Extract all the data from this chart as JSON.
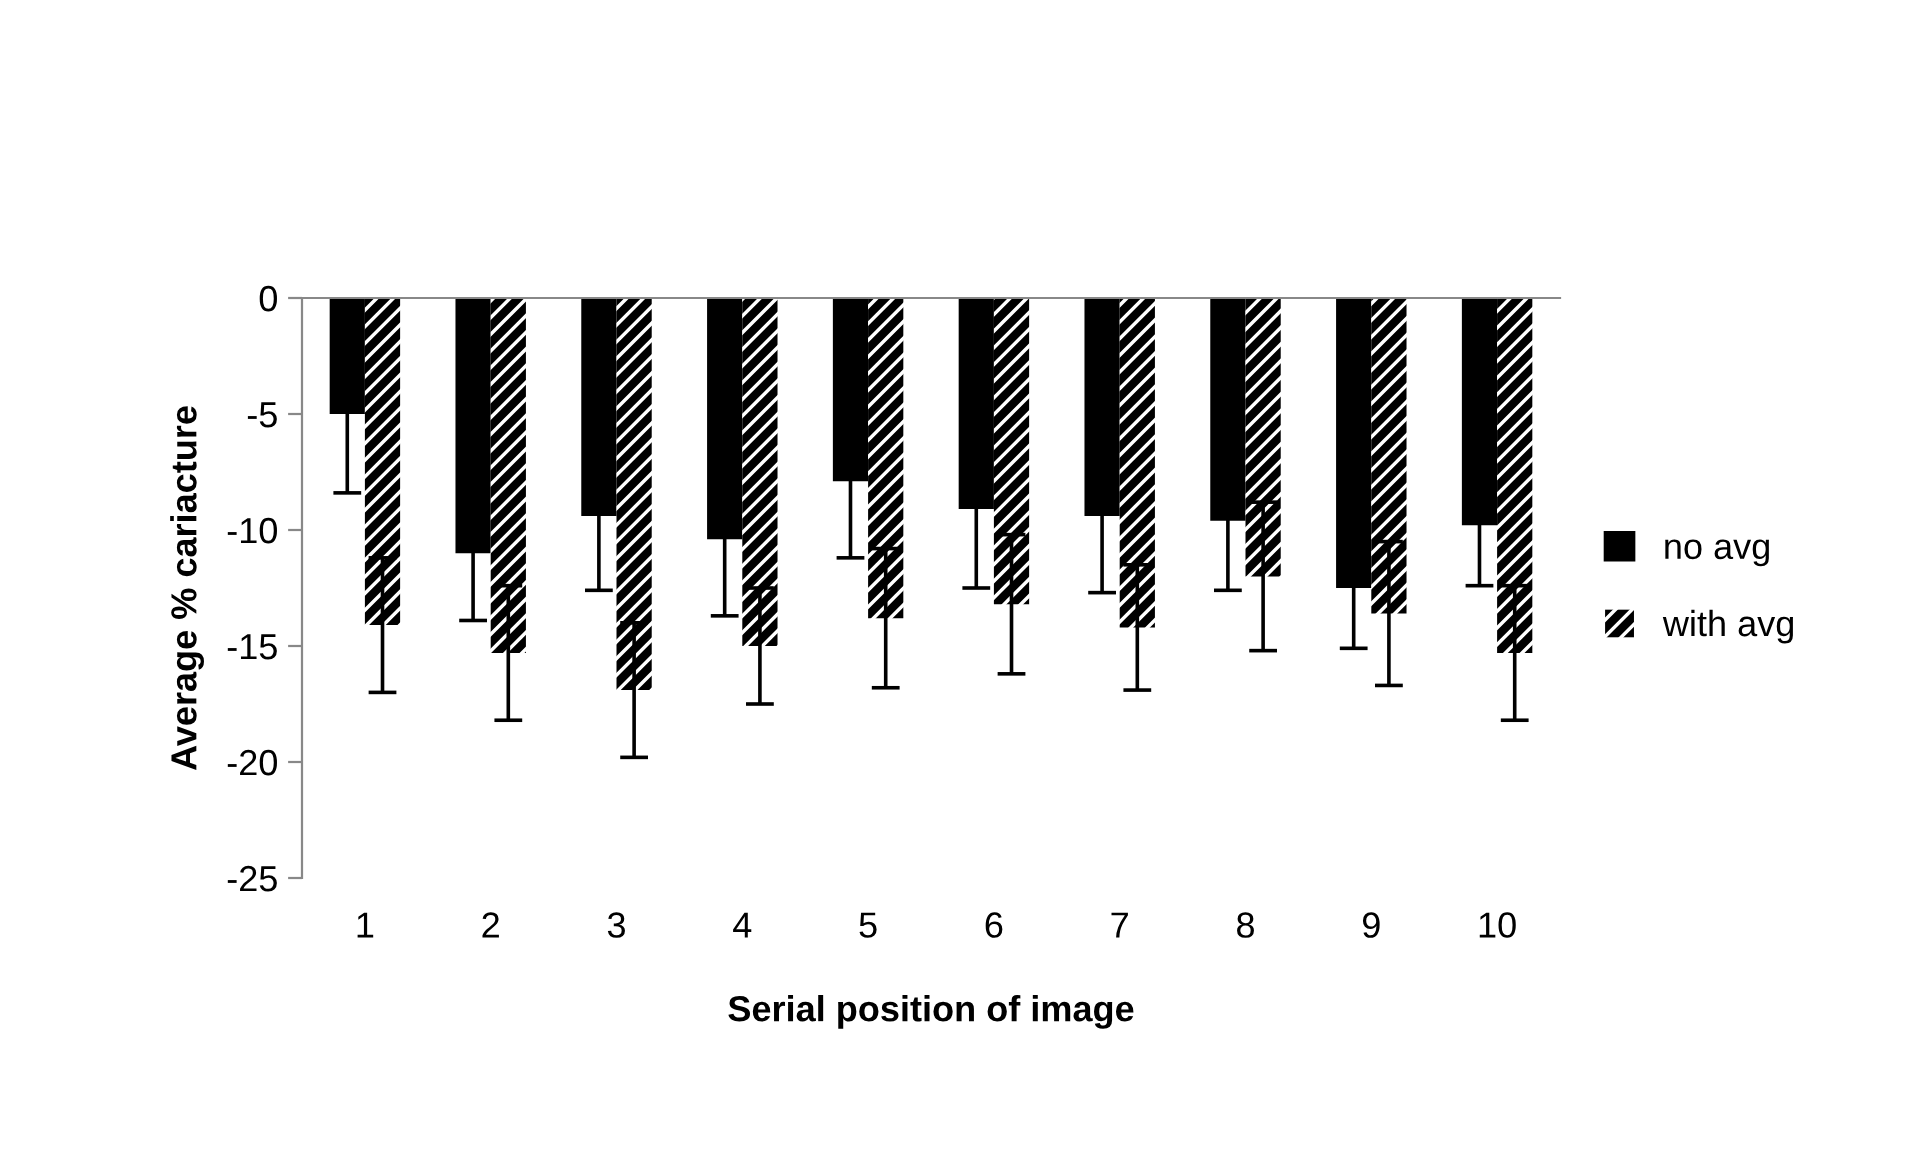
{
  "chart_data": {
    "type": "bar",
    "xlabel": "Serial position of image",
    "ylabel": "Average % cariacture",
    "categories": [
      "1",
      "2",
      "3",
      "4",
      "5",
      "6",
      "7",
      "8",
      "9",
      "10"
    ],
    "series": [
      {
        "name": "no avg",
        "color": "#000000",
        "values": [
          -5.0,
          -11.0,
          -9.4,
          -10.4,
          -7.9,
          -9.1,
          -9.4,
          -9.6,
          -12.5,
          -9.8
        ],
        "errors": [
          3.4,
          2.9,
          3.2,
          3.3,
          3.3,
          3.4,
          3.3,
          3.0,
          2.6,
          2.6
        ]
      },
      {
        "name": "with avg",
        "color": "#000000",
        "values": [
          -14.1,
          -15.3,
          -16.9,
          -15.0,
          -13.8,
          -13.2,
          -14.2,
          -12.0,
          -13.6,
          -15.3
        ],
        "errors": [
          2.9,
          2.9,
          2.9,
          2.5,
          3.0,
          3.0,
          2.7,
          3.2,
          3.1,
          2.9
        ]
      }
    ],
    "ylim": [
      -25,
      0
    ],
    "yticks": [
      {
        "value": -25,
        "label": "-25"
      },
      {
        "value": -20,
        "label": "-20"
      },
      {
        "value": -15,
        "label": "-15"
      },
      {
        "value": -10,
        "label": "-10"
      },
      {
        "value": -5,
        "label": "-5"
      },
      0
    ],
    "legend": "right",
    "grid": false
  }
}
